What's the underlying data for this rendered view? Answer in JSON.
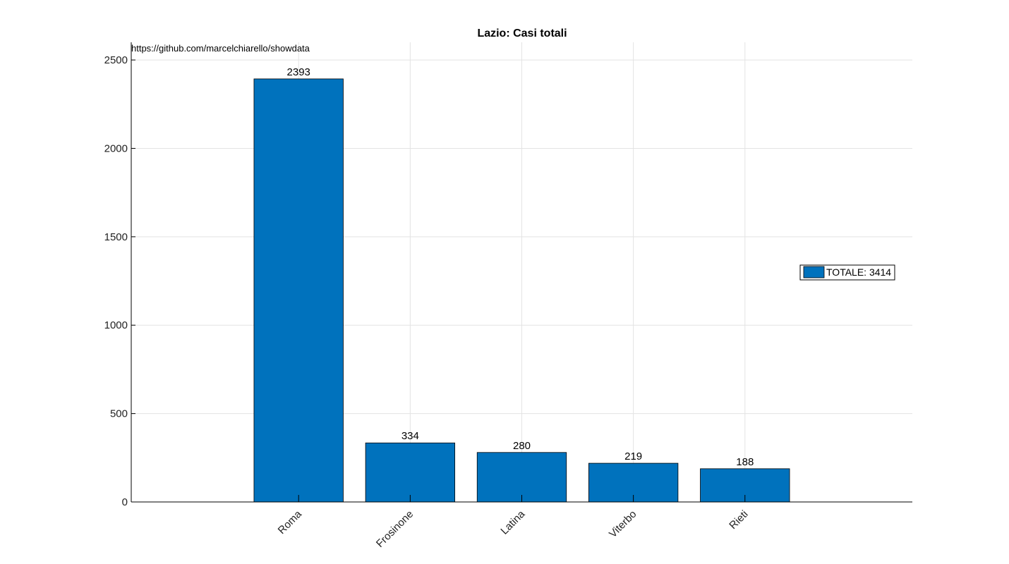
{
  "chart_data": {
    "type": "bar",
    "title": "Lazio: Casi totali",
    "source_note": "https://github.com/marcelchiarello/showdata",
    "categories": [
      "Roma",
      "Frosinone",
      "Latina",
      "Viterbo",
      "Rieti"
    ],
    "values": [
      2393,
      334,
      280,
      219,
      188
    ],
    "data_labels": [
      "2393",
      "334",
      "280",
      "219",
      "188"
    ],
    "ylim": [
      0,
      2600
    ],
    "yticks": [
      0,
      500,
      1000,
      1500,
      2000,
      2500
    ],
    "xlabel": "",
    "ylabel": "",
    "grid": true,
    "legend": {
      "label": "TOTALE: 3414",
      "placement": "right"
    },
    "colors": {
      "bar": "#0072BD",
      "grid": "#e3e3e3",
      "axis": "#000000"
    }
  }
}
